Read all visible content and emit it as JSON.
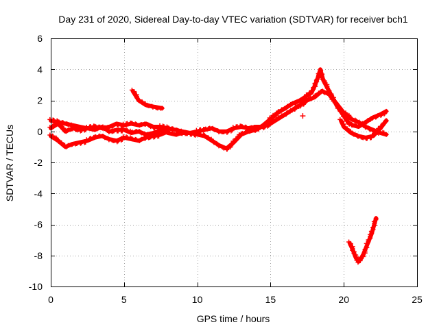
{
  "chart_data": {
    "type": "scatter",
    "title": "Day 231 of 2020, Sidereal Day-to-day VTEC variation (SDTVAR) for receiver bch1",
    "xlabel": "GPS time / hours",
    "ylabel": "SDTVAR / TECUs",
    "xlim": [
      0,
      25
    ],
    "ylim": [
      -10,
      6
    ],
    "xticks": [
      0,
      5,
      10,
      15,
      20,
      25
    ],
    "yticks": [
      -10,
      -8,
      -6,
      -4,
      -2,
      0,
      2,
      4,
      6
    ],
    "xtick_labels": [
      "0",
      "5",
      "10",
      "15",
      "20",
      "25"
    ],
    "ytick_labels": [
      "-10",
      "-8",
      "-6",
      "-4",
      "-2",
      "0",
      "2",
      "4",
      "6"
    ],
    "grid": true,
    "marker": "plus",
    "color": "#ff0000",
    "series": [
      {
        "name": "track-a",
        "points": [
          [
            0,
            0.7
          ],
          [
            0.5,
            0.6
          ],
          [
            1,
            0.5
          ],
          [
            1.5,
            0.4
          ],
          [
            2,
            0.3
          ],
          [
            2.5,
            0.2
          ],
          [
            3,
            0.3
          ],
          [
            3.5,
            0.2
          ],
          [
            4,
            0.3
          ],
          [
            4.5,
            0.5
          ],
          [
            5,
            0.4
          ],
          [
            5.5,
            0.5
          ],
          [
            6,
            0.4
          ],
          [
            6.5,
            0.5
          ],
          [
            7,
            0.3
          ],
          [
            7.5,
            0.3
          ],
          [
            8,
            0.2
          ],
          [
            8.5,
            0.1
          ],
          [
            9,
            0.0
          ],
          [
            9.5,
            -0.1
          ],
          [
            10,
            -0.2
          ],
          [
            10.5,
            -0.3
          ],
          [
            11,
            -0.6
          ],
          [
            11.5,
            -0.9
          ],
          [
            12,
            -1.1
          ],
          [
            12.5,
            -0.7
          ],
          [
            13,
            -0.2
          ],
          [
            13.5,
            0.0
          ],
          [
            14,
            0.1
          ],
          [
            14.5,
            0.4
          ],
          [
            15,
            0.8
          ],
          [
            15.5,
            1.2
          ],
          [
            16,
            1.5
          ],
          [
            16.5,
            1.8
          ],
          [
            17,
            2.0
          ],
          [
            17.5,
            2.3
          ],
          [
            17.8,
            2.5
          ],
          [
            18,
            2.9
          ],
          [
            18.2,
            3.4
          ],
          [
            18.4,
            4.0
          ],
          [
            18.6,
            3.3
          ],
          [
            19,
            2.6
          ],
          [
            19.5,
            1.7
          ],
          [
            20,
            1.0
          ],
          [
            20.3,
            0.6
          ],
          [
            20.6,
            0.4
          ],
          [
            21,
            0.3
          ],
          [
            21.5,
            0.6
          ],
          [
            22,
            0.9
          ],
          [
            22.5,
            1.1
          ],
          [
            22.9,
            1.3
          ]
        ]
      },
      {
        "name": "track-b",
        "points": [
          [
            0,
            0.2
          ],
          [
            0.5,
            0.5
          ],
          [
            1,
            0.0
          ],
          [
            1.5,
            0.2
          ],
          [
            2,
            0.1
          ],
          [
            2.5,
            0.2
          ],
          [
            3,
            0.1
          ],
          [
            3.5,
            0.3
          ],
          [
            4,
            0.0
          ],
          [
            4.5,
            0.1
          ],
          [
            5,
            0.1
          ],
          [
            5.5,
            -0.1
          ],
          [
            6,
            0.0
          ],
          [
            6.5,
            -0.2
          ],
          [
            7,
            -0.1
          ],
          [
            7.5,
            0.1
          ],
          [
            8,
            -0.1
          ],
          [
            8.5,
            -0.2
          ],
          [
            9,
            -0.1
          ],
          [
            9.5,
            -0.1
          ],
          [
            10,
            0.0
          ],
          [
            10.5,
            0.1
          ],
          [
            11,
            0.2
          ],
          [
            11.5,
            0.0
          ],
          [
            12,
            0.0
          ],
          [
            12.5,
            0.2
          ],
          [
            13,
            0.3
          ],
          [
            13.5,
            0.2
          ],
          [
            14,
            0.3
          ],
          [
            14.5,
            0.3
          ],
          [
            15,
            0.5
          ],
          [
            15.5,
            0.8
          ],
          [
            16,
            1.1
          ],
          [
            16.5,
            1.4
          ],
          [
            17,
            1.7
          ],
          [
            17.5,
            2.0
          ],
          [
            18,
            2.2
          ],
          [
            18.5,
            2.6
          ],
          [
            19,
            2.4
          ],
          [
            19.5,
            1.8
          ],
          [
            20,
            1.2
          ],
          [
            20.5,
            0.8
          ],
          [
            21,
            0.6
          ],
          [
            21.5,
            0.3
          ],
          [
            22,
            0.1
          ],
          [
            22.5,
            -0.1
          ],
          [
            22.9,
            -0.2
          ]
        ]
      },
      {
        "name": "track-c",
        "points": [
          [
            0,
            -0.3
          ],
          [
            0.5,
            -0.6
          ],
          [
            1,
            -1.0
          ],
          [
            1.5,
            -0.8
          ],
          [
            2,
            -0.7
          ],
          [
            2.5,
            -0.6
          ],
          [
            3,
            -0.4
          ],
          [
            3.5,
            -0.3
          ],
          [
            4,
            -0.5
          ],
          [
            4.5,
            -0.6
          ],
          [
            5,
            -0.4
          ],
          [
            5.5,
            -0.5
          ],
          [
            6,
            -0.6
          ],
          [
            6.5,
            -0.4
          ],
          [
            7,
            -0.3
          ],
          [
            7.5,
            -0.2
          ],
          [
            8,
            0.0
          ]
        ]
      },
      {
        "name": "track-d",
        "points": [
          [
            19.8,
            0.7
          ],
          [
            20,
            0.3
          ],
          [
            20.5,
            -0.1
          ],
          [
            21,
            -0.3
          ],
          [
            21.5,
            -0.4
          ],
          [
            22,
            -0.3
          ],
          [
            22.5,
            0.2
          ],
          [
            22.9,
            0.7
          ]
        ]
      },
      {
        "name": "track-e",
        "points": [
          [
            5.6,
            2.6
          ],
          [
            6,
            2.0
          ],
          [
            6.5,
            1.7
          ],
          [
            7,
            1.6
          ],
          [
            7.6,
            1.5
          ]
        ]
      },
      {
        "name": "track-f",
        "points": [
          [
            20.4,
            -7.2
          ],
          [
            20.6,
            -7.6
          ],
          [
            20.8,
            -8.1
          ],
          [
            21,
            -8.4
          ],
          [
            21.3,
            -8.0
          ],
          [
            21.6,
            -7.3
          ],
          [
            21.9,
            -6.6
          ],
          [
            22.2,
            -5.6
          ]
        ]
      },
      {
        "name": "outlier",
        "points": [
          [
            17.2,
            1.0
          ]
        ]
      }
    ]
  }
}
